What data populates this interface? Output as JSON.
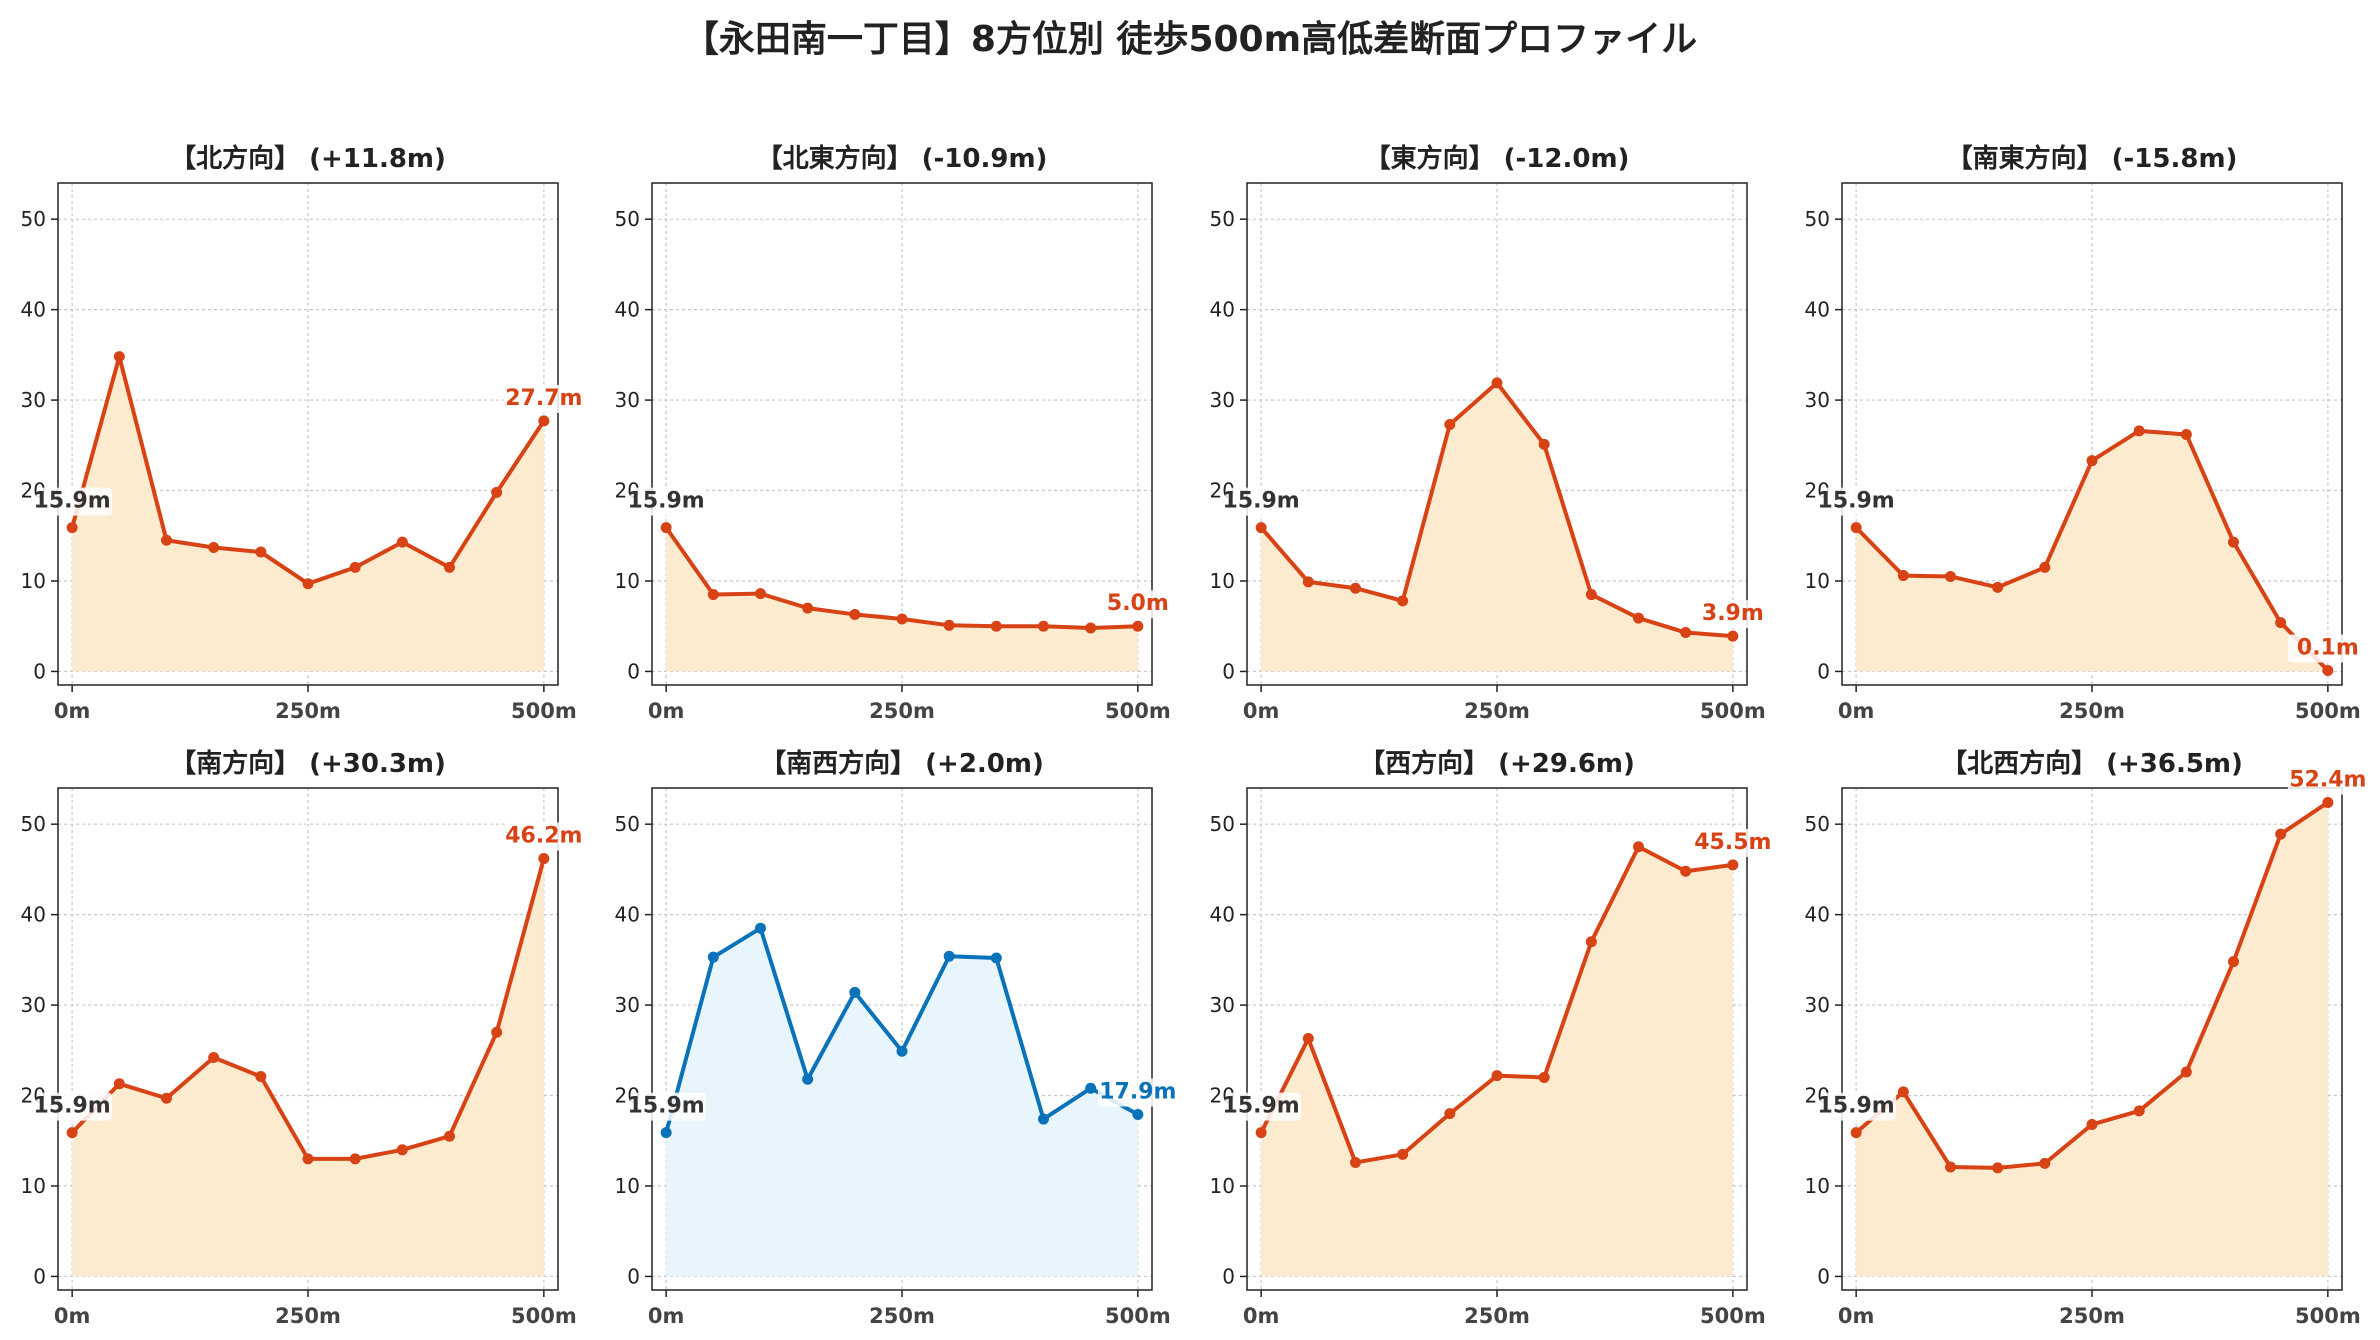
{
  "figure": {
    "title": "【永田南一丁目】8方位別 徒歩500m高低差断面プロファイル"
  },
  "colors": {
    "up_line": "#d84315",
    "up_fill": "#fdebd0",
    "down_line": "#0a72b8",
    "down_fill": "#e8f5fc",
    "start_label": "#333333",
    "grid": "#c8c8c8",
    "axis": "#222222"
  },
  "chart_data": [
    {
      "type": "area",
      "title": "【北方向】 (+11.8m)",
      "direction": "北",
      "diff": "+11.8m",
      "scheme": "up",
      "x": [
        0,
        50,
        100,
        150,
        200,
        250,
        300,
        350,
        400,
        450,
        500
      ],
      "y": [
        15.9,
        34.8,
        14.5,
        13.7,
        13.2,
        9.7,
        11.5,
        14.3,
        11.5,
        19.8,
        27.7
      ],
      "start_label": "15.9m",
      "end_label": "27.7m",
      "xticks": [
        "0m",
        "250m",
        "500m"
      ],
      "yticks": [
        0,
        10,
        20,
        30,
        40,
        50
      ],
      "ylim": [
        -1.5,
        54
      ],
      "xlim": [
        -15,
        515
      ],
      "grid": true
    },
    {
      "type": "area",
      "title": "【北東方向】 (-10.9m)",
      "direction": "北東",
      "diff": "-10.9m",
      "scheme": "up",
      "x": [
        0,
        50,
        100,
        150,
        200,
        250,
        300,
        350,
        400,
        450,
        500
      ],
      "y": [
        15.9,
        8.5,
        8.6,
        7.0,
        6.3,
        5.8,
        5.1,
        5.0,
        5.0,
        4.8,
        5.0
      ],
      "start_label": "15.9m",
      "end_label": "5.0m",
      "xticks": [
        "0m",
        "250m",
        "500m"
      ],
      "yticks": [
        0,
        10,
        20,
        30,
        40,
        50
      ],
      "ylim": [
        -1.5,
        54
      ],
      "xlim": [
        -15,
        515
      ],
      "grid": true
    },
    {
      "type": "area",
      "title": "【東方向】 (-12.0m)",
      "direction": "東",
      "diff": "-12.0m",
      "scheme": "up",
      "x": [
        0,
        50,
        100,
        150,
        200,
        250,
        300,
        350,
        400,
        450,
        500
      ],
      "y": [
        15.9,
        9.9,
        9.2,
        7.8,
        27.3,
        31.9,
        25.1,
        8.5,
        5.9,
        4.3,
        3.9
      ],
      "start_label": "15.9m",
      "end_label": "3.9m",
      "xticks": [
        "0m",
        "250m",
        "500m"
      ],
      "yticks": [
        0,
        10,
        20,
        30,
        40,
        50
      ],
      "ylim": [
        -1.5,
        54
      ],
      "xlim": [
        -15,
        515
      ],
      "grid": true
    },
    {
      "type": "area",
      "title": "【南東方向】 (-15.8m)",
      "direction": "南東",
      "diff": "-15.8m",
      "scheme": "up",
      "x": [
        0,
        50,
        100,
        150,
        200,
        250,
        300,
        350,
        400,
        450,
        500
      ],
      "y": [
        15.9,
        10.6,
        10.5,
        9.3,
        11.5,
        23.3,
        26.6,
        26.2,
        14.3,
        5.4,
        0.1
      ],
      "start_label": "15.9m",
      "end_label": "0.1m",
      "xticks": [
        "0m",
        "250m",
        "500m"
      ],
      "yticks": [
        0,
        10,
        20,
        30,
        40,
        50
      ],
      "ylim": [
        -1.5,
        54
      ],
      "xlim": [
        -15,
        515
      ],
      "grid": true
    },
    {
      "type": "area",
      "title": "【南方向】 (+30.3m)",
      "direction": "南",
      "diff": "+30.3m",
      "scheme": "up",
      "x": [
        0,
        50,
        100,
        150,
        200,
        250,
        300,
        350,
        400,
        450,
        500
      ],
      "y": [
        15.9,
        21.3,
        19.7,
        24.2,
        22.1,
        13.0,
        13.0,
        14.0,
        15.5,
        27.0,
        46.2
      ],
      "start_label": "15.9m",
      "end_label": "46.2m",
      "xticks": [
        "0m",
        "250m",
        "500m"
      ],
      "yticks": [
        0,
        10,
        20,
        30,
        40,
        50
      ],
      "ylim": [
        -1.5,
        54
      ],
      "xlim": [
        -15,
        515
      ],
      "grid": true
    },
    {
      "type": "area",
      "title": "【南西方向】 (+2.0m)",
      "direction": "南西",
      "diff": "+2.0m",
      "scheme": "down",
      "x": [
        0,
        50,
        100,
        150,
        200,
        250,
        300,
        350,
        400,
        450,
        500
      ],
      "y": [
        15.9,
        35.3,
        38.5,
        21.8,
        31.4,
        24.9,
        35.4,
        35.2,
        17.4,
        20.8,
        17.9
      ],
      "start_label": "15.9m",
      "end_label": "17.9m",
      "xticks": [
        "0m",
        "250m",
        "500m"
      ],
      "yticks": [
        0,
        10,
        20,
        30,
        40,
        50
      ],
      "ylim": [
        -1.5,
        54
      ],
      "xlim": [
        -15,
        515
      ],
      "grid": true
    },
    {
      "type": "area",
      "title": "【西方向】 (+29.6m)",
      "direction": "西",
      "diff": "+29.6m",
      "scheme": "up",
      "x": [
        0,
        50,
        100,
        150,
        200,
        250,
        300,
        350,
        400,
        450,
        500
      ],
      "y": [
        15.9,
        26.3,
        12.6,
        13.5,
        18.0,
        22.2,
        22.0,
        37.0,
        47.5,
        44.8,
        45.5
      ],
      "start_label": "15.9m",
      "end_label": "45.5m",
      "xticks": [
        "0m",
        "250m",
        "500m"
      ],
      "yticks": [
        0,
        10,
        20,
        30,
        40,
        50
      ],
      "ylim": [
        -1.5,
        54
      ],
      "xlim": [
        -15,
        515
      ],
      "grid": true
    },
    {
      "type": "area",
      "title": "【北西方向】 (+36.5m)",
      "direction": "北西",
      "diff": "+36.5m",
      "scheme": "up",
      "x": [
        0,
        50,
        100,
        150,
        200,
        250,
        300,
        350,
        400,
        450,
        500
      ],
      "y": [
        15.9,
        20.4,
        12.1,
        12.0,
        12.5,
        16.8,
        18.3,
        22.6,
        34.8,
        48.9,
        52.4
      ],
      "start_label": "15.9m",
      "end_label": "52.4m",
      "xticks": [
        "0m",
        "250m",
        "500m"
      ],
      "yticks": [
        0,
        10,
        20,
        30,
        40,
        50
      ],
      "ylim": [
        -1.5,
        54
      ],
      "xlim": [
        -15,
        515
      ],
      "grid": true
    }
  ]
}
